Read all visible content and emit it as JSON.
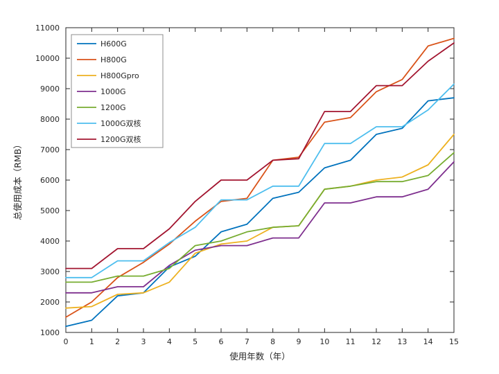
{
  "chart_data": {
    "type": "line",
    "title": "",
    "xlabel": "使用年数（年）",
    "ylabel": "总使用成本（RMB）",
    "x": [
      0,
      1,
      2,
      3,
      4,
      5,
      6,
      7,
      8,
      9,
      10,
      11,
      12,
      13,
      14,
      15
    ],
    "xlim": [
      0,
      15
    ],
    "ylim": [
      1000,
      11000
    ],
    "ytick_step": 1000,
    "grid": false,
    "legend_position": "top-left",
    "axis_color": "#262626",
    "series": [
      {
        "name": "H600G",
        "color": "#0072BD",
        "values": [
          1200,
          1400,
          2200,
          2300,
          3150,
          3500,
          4300,
          4550,
          5400,
          5600,
          6400,
          6650,
          7500,
          7700,
          8600,
          8700
        ]
      },
      {
        "name": "H800G",
        "color": "#D95319",
        "values": [
          1500,
          2000,
          2800,
          3300,
          3900,
          4650,
          5300,
          5400,
          6650,
          6750,
          7900,
          8050,
          8900,
          9300,
          10400,
          10650
        ]
      },
      {
        "name": "H800Gpro",
        "color": "#EDB120",
        "values": [
          1800,
          1850,
          2250,
          2300,
          2650,
          3600,
          3900,
          4000,
          4450,
          4500,
          5700,
          5800,
          6000,
          6100,
          6500,
          7500
        ]
      },
      {
        "name": "1000G",
        "color": "#7E2F8E",
        "values": [
          2300,
          2300,
          2500,
          2500,
          3200,
          3700,
          3850,
          3850,
          4100,
          4100,
          5250,
          5250,
          5450,
          5450,
          5700,
          6600
        ]
      },
      {
        "name": "1200G",
        "color": "#77AC30",
        "values": [
          2650,
          2650,
          2850,
          2850,
          3100,
          3850,
          4000,
          4300,
          4450,
          4500,
          5700,
          5800,
          5950,
          5950,
          6150,
          6900
        ]
      },
      {
        "name": "1000G双核",
        "color": "#4DBEEE",
        "values": [
          2800,
          2800,
          3350,
          3350,
          3950,
          4450,
          5350,
          5350,
          5800,
          5800,
          7200,
          7200,
          7750,
          7750,
          8300,
          9150
        ]
      },
      {
        "name": "1200G双核",
        "color": "#A2142F",
        "values": [
          3100,
          3100,
          3750,
          3750,
          4400,
          5300,
          6000,
          6000,
          6650,
          6700,
          8250,
          8250,
          9100,
          9100,
          9900,
          10500
        ]
      }
    ]
  }
}
